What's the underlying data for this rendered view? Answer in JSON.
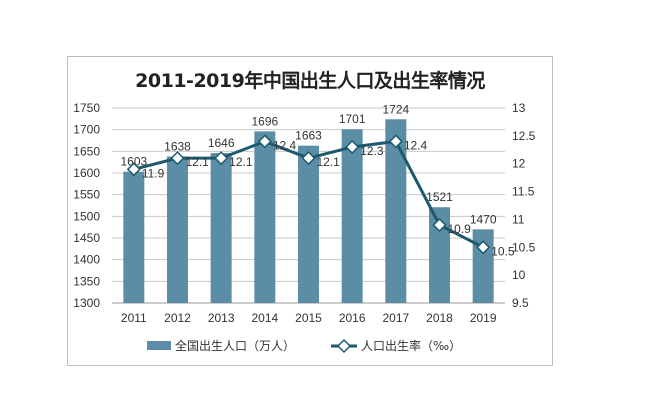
{
  "chart_data": {
    "type": "bar+line",
    "title": "2011-2019年中国出生人口及出生率情况",
    "categories": [
      "2011",
      "2012",
      "2013",
      "2014",
      "2015",
      "2016",
      "2017",
      "2018",
      "2019"
    ],
    "series": [
      {
        "name": "全国出生人口（万人）",
        "type": "bar",
        "axis": "left",
        "color": "#5b8ea6",
        "values": [
          1603,
          1638,
          1646,
          1696,
          1663,
          1701,
          1724,
          1521,
          1470
        ]
      },
      {
        "name": "人口出生率（‰）",
        "type": "line",
        "axis": "right",
        "color": "#1d5a6d",
        "marker": "diamond",
        "values": [
          11.9,
          12.1,
          12.1,
          12.4,
          12.1,
          12.3,
          12.4,
          10.9,
          10.5
        ]
      }
    ],
    "y_left": {
      "min": 1300,
      "max": 1750,
      "step": 50,
      "ticks": [
        "1300",
        "1350",
        "1400",
        "1450",
        "1500",
        "1550",
        "1600",
        "1650",
        "1700",
        "1750"
      ]
    },
    "y_right": {
      "min": 9.5,
      "max": 13,
      "step": 0.5,
      "ticks": [
        "9.5",
        "10",
        "10.5",
        "11",
        "11.5",
        "12",
        "12.5",
        "13"
      ]
    },
    "grid": true,
    "legend": "bottom"
  }
}
